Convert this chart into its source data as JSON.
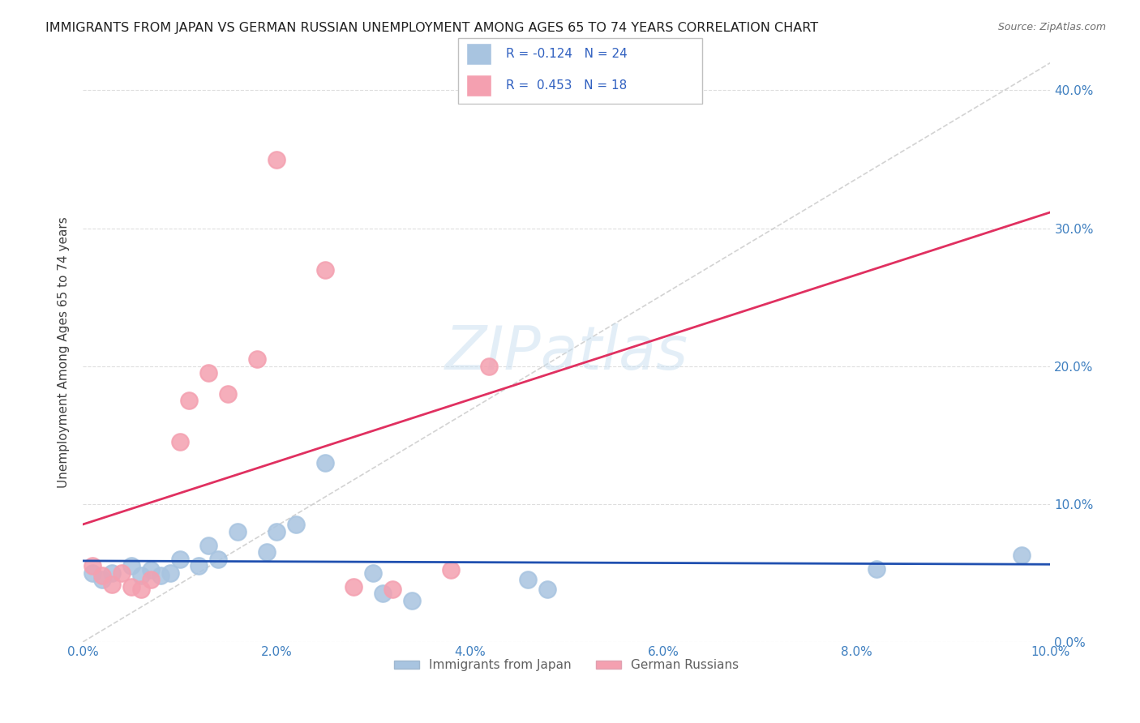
{
  "title": "IMMIGRANTS FROM JAPAN VS GERMAN RUSSIAN UNEMPLOYMENT AMONG AGES 65 TO 74 YEARS CORRELATION CHART",
  "source": "Source: ZipAtlas.com",
  "ylabel": "Unemployment Among Ages 65 to 74 years",
  "xlim": [
    0.0,
    0.1
  ],
  "ylim": [
    0.0,
    0.42
  ],
  "xticks": [
    0.0,
    0.02,
    0.04,
    0.06,
    0.08,
    0.1
  ],
  "yticks": [
    0.0,
    0.1,
    0.2,
    0.3,
    0.4
  ],
  "ytick_labels_right": [
    "0.0%",
    "10.0%",
    "20.0%",
    "30.0%",
    "40.0%"
  ],
  "xtick_labels": [
    "0.0%",
    "2.0%",
    "4.0%",
    "6.0%",
    "8.0%",
    "10.0%"
  ],
  "japan_R": -0.124,
  "japan_N": 24,
  "german_R": 0.453,
  "german_N": 18,
  "legend_label1": "Immigrants from Japan",
  "legend_label2": "German Russians",
  "japan_color": "#a8c4e0",
  "japan_line_color": "#2050b0",
  "german_color": "#f4a0b0",
  "german_line_color": "#e03060",
  "diagonal_color": "#c8c8c8",
  "japan_points_x": [
    0.001,
    0.002,
    0.003,
    0.005,
    0.006,
    0.007,
    0.008,
    0.009,
    0.01,
    0.012,
    0.013,
    0.014,
    0.016,
    0.019,
    0.02,
    0.022,
    0.025,
    0.03,
    0.031,
    0.034,
    0.046,
    0.048,
    0.082,
    0.097
  ],
  "japan_points_y": [
    0.05,
    0.045,
    0.05,
    0.055,
    0.048,
    0.052,
    0.048,
    0.05,
    0.06,
    0.055,
    0.07,
    0.06,
    0.08,
    0.065,
    0.08,
    0.085,
    0.13,
    0.05,
    0.035,
    0.03,
    0.045,
    0.038,
    0.053,
    0.063
  ],
  "german_points_x": [
    0.001,
    0.002,
    0.003,
    0.004,
    0.005,
    0.006,
    0.007,
    0.01,
    0.011,
    0.013,
    0.015,
    0.018,
    0.02,
    0.025,
    0.028,
    0.032,
    0.038,
    0.042
  ],
  "german_points_y": [
    0.055,
    0.048,
    0.042,
    0.05,
    0.04,
    0.038,
    0.045,
    0.145,
    0.175,
    0.195,
    0.18,
    0.205,
    0.35,
    0.27,
    0.04,
    0.038,
    0.052,
    0.2
  ]
}
